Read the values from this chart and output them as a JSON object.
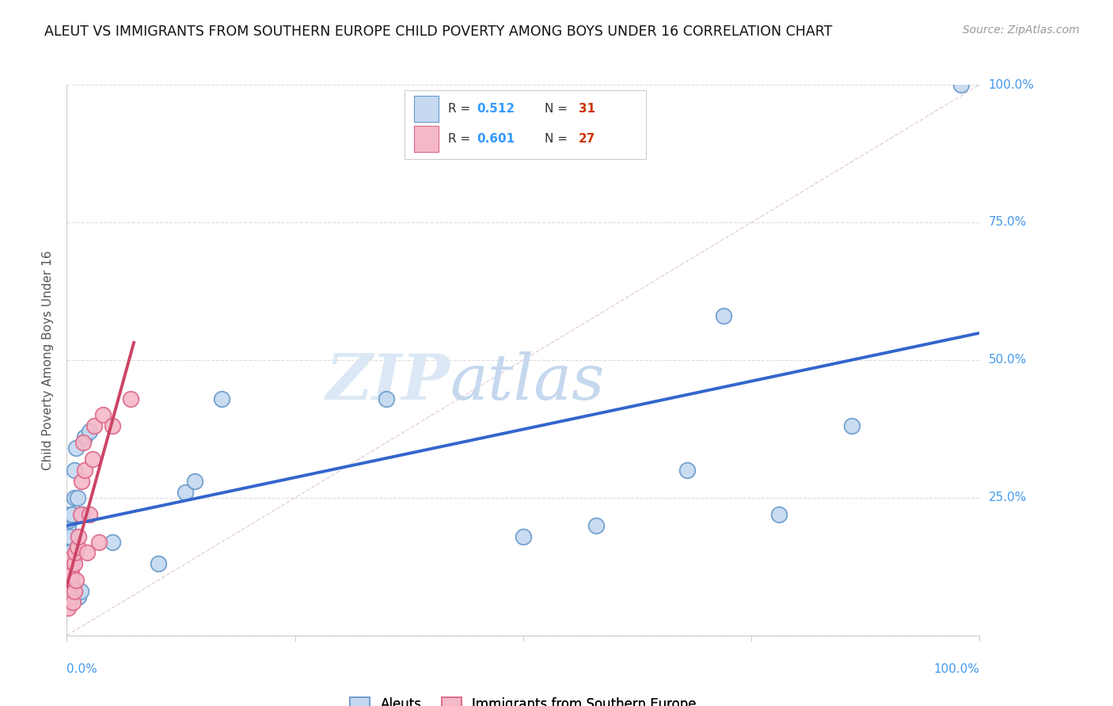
{
  "title": "ALEUT VS IMMIGRANTS FROM SOUTHERN EUROPE CHILD POVERTY AMONG BOYS UNDER 16 CORRELATION CHART",
  "source": "Source: ZipAtlas.com",
  "ylabel": "Child Poverty Among Boys Under 16",
  "legend_r1": "0.512",
  "legend_n1": "31",
  "legend_r2": "0.601",
  "legend_n2": "27",
  "aleuts_x": [
    0.001,
    0.002,
    0.003,
    0.003,
    0.004,
    0.005,
    0.005,
    0.006,
    0.007,
    0.008,
    0.008,
    0.01,
    0.012,
    0.013,
    0.015,
    0.017,
    0.02,
    0.025,
    0.05,
    0.1,
    0.13,
    0.14,
    0.17,
    0.35,
    0.5,
    0.58,
    0.68,
    0.72,
    0.78,
    0.86,
    0.98
  ],
  "aleuts_y": [
    0.2,
    0.21,
    0.22,
    0.18,
    0.15,
    0.1,
    0.13,
    0.22,
    0.14,
    0.25,
    0.3,
    0.34,
    0.25,
    0.07,
    0.08,
    0.22,
    0.36,
    0.37,
    0.17,
    0.13,
    0.26,
    0.28,
    0.43,
    0.43,
    0.18,
    0.2,
    0.3,
    0.58,
    0.22,
    0.38,
    1.0
  ],
  "immigrants_x": [
    0.001,
    0.002,
    0.003,
    0.003,
    0.004,
    0.005,
    0.005,
    0.006,
    0.007,
    0.008,
    0.008,
    0.009,
    0.01,
    0.012,
    0.013,
    0.015,
    0.016,
    0.018,
    0.02,
    0.022,
    0.025,
    0.028,
    0.03,
    0.035,
    0.04,
    0.05,
    0.07
  ],
  "immigrants_y": [
    0.05,
    0.08,
    0.09,
    0.1,
    0.07,
    0.12,
    0.11,
    0.14,
    0.06,
    0.08,
    0.13,
    0.15,
    0.1,
    0.16,
    0.18,
    0.22,
    0.28,
    0.35,
    0.3,
    0.15,
    0.22,
    0.32,
    0.38,
    0.17,
    0.4,
    0.38,
    0.43
  ],
  "aleut_fill": "#c5d9f0",
  "aleut_edge": "#6699cc",
  "immigrant_fill": "#f4b8c8",
  "immigrant_edge": "#dd6688",
  "aleut_line_color": "#3366cc",
  "immigrant_line_color": "#cc4466",
  "diagonal_color": "#cccccc",
  "grid_color": "#dddddd",
  "watermark_zip_color": "#d8e8f5",
  "watermark_atlas_color": "#c8daf0",
  "background_color": "#ffffff",
  "title_color": "#111111",
  "source_color": "#999999",
  "ylabel_color": "#555555",
  "tick_color_blue": "#4499ee",
  "legend_val_color": "#3399ff",
  "legend_n_color": "#cc3300",
  "legend_text_color": "#333333",
  "legend_border_color": "#cccccc",
  "ytick_labels": [
    "",
    "25.0%",
    "50.0%",
    "75.0%",
    "100.0%"
  ],
  "ytick_vals": [
    0.0,
    0.25,
    0.5,
    0.75,
    1.0
  ],
  "xtick_labels_bottom": [
    "0.0%",
    "100.0%"
  ]
}
